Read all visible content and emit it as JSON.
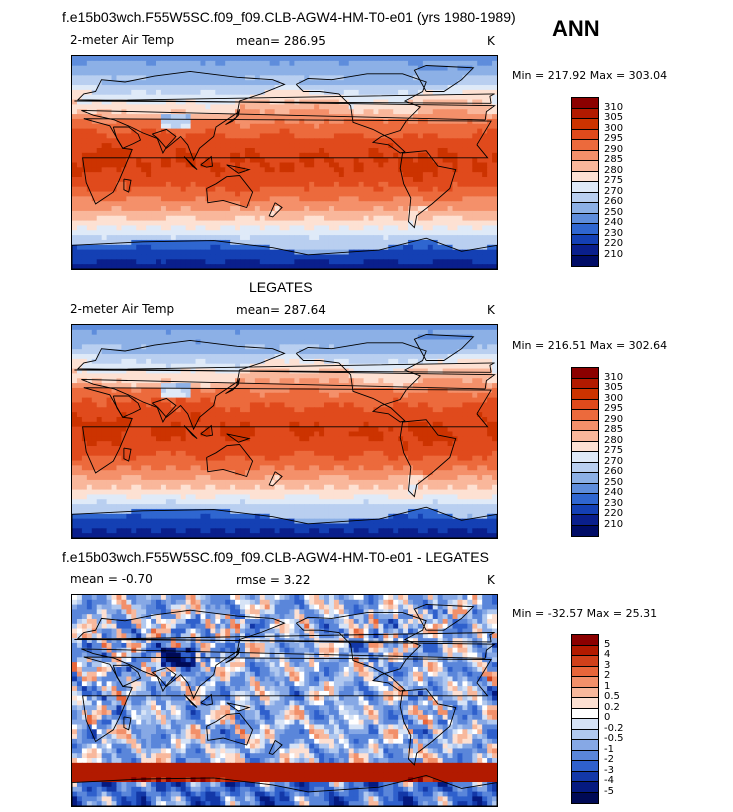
{
  "header": {
    "case_title": "f.e15b03wch.F55W5SC.f09_f09.CLB-AGW4-HM-T0-e01 (yrs 1980-1989)",
    "season": "ANN"
  },
  "panel1": {
    "variable": "2-meter Air Temp",
    "mean_text": "mean= 286.95",
    "units": "K",
    "minmax_text": "Min = 217.92 Max = 303.04",
    "colorbar_labels": [
      "310",
      "305",
      "300",
      "295",
      "290",
      "285",
      "280",
      "275",
      "270",
      "260",
      "250",
      "240",
      "230",
      "220",
      "210"
    ]
  },
  "panel2": {
    "title": "LEGATES",
    "variable": "2-meter Air Temp",
    "mean_text": "mean= 287.64",
    "units": "K",
    "minmax_text": "Min = 216.51 Max = 302.64",
    "colorbar_labels": [
      "310",
      "305",
      "300",
      "295",
      "290",
      "285",
      "280",
      "275",
      "270",
      "260",
      "250",
      "240",
      "230",
      "220",
      "210"
    ]
  },
  "panel3": {
    "title": "f.e15b03wch.F55W5SC.f09_f09.CLB-AGW4-HM-T0-e01 - LEGATES",
    "mean_text": "mean =   -0.70",
    "rmse_text": "rmse =    3.22",
    "units": "K",
    "minmax_text": "Min = -32.57 Max =  25.31",
    "colorbar_labels": [
      "5",
      "4",
      "3",
      "2",
      "1",
      "0.5",
      "0.2",
      "0",
      "-0.2",
      "-0.5",
      "-1",
      "-2",
      "-3",
      "-4",
      "-5"
    ]
  },
  "colors": {
    "abs_scale": [
      "#8b0000",
      "#b21a00",
      "#cc3300",
      "#e04a1c",
      "#ec6a3c",
      "#f4906a",
      "#f9b79b",
      "#fde1d3",
      "#dfeaf8",
      "#b9cff0",
      "#8cb0e6",
      "#5e8ddc",
      "#2f66d0",
      "#1440b4",
      "#0a1f8c",
      "#000c66"
    ],
    "diff_scale": [
      "#8b0000",
      "#b21a00",
      "#d0401a",
      "#e8663a",
      "#f2906a",
      "#f8b89c",
      "#fde0d2",
      "#ffffff",
      "#d6e3f6",
      "#b0c8ef",
      "#86a8e5",
      "#5a86da",
      "#2f60cc",
      "#1338a8",
      "#051a80",
      "#000a55"
    ]
  }
}
